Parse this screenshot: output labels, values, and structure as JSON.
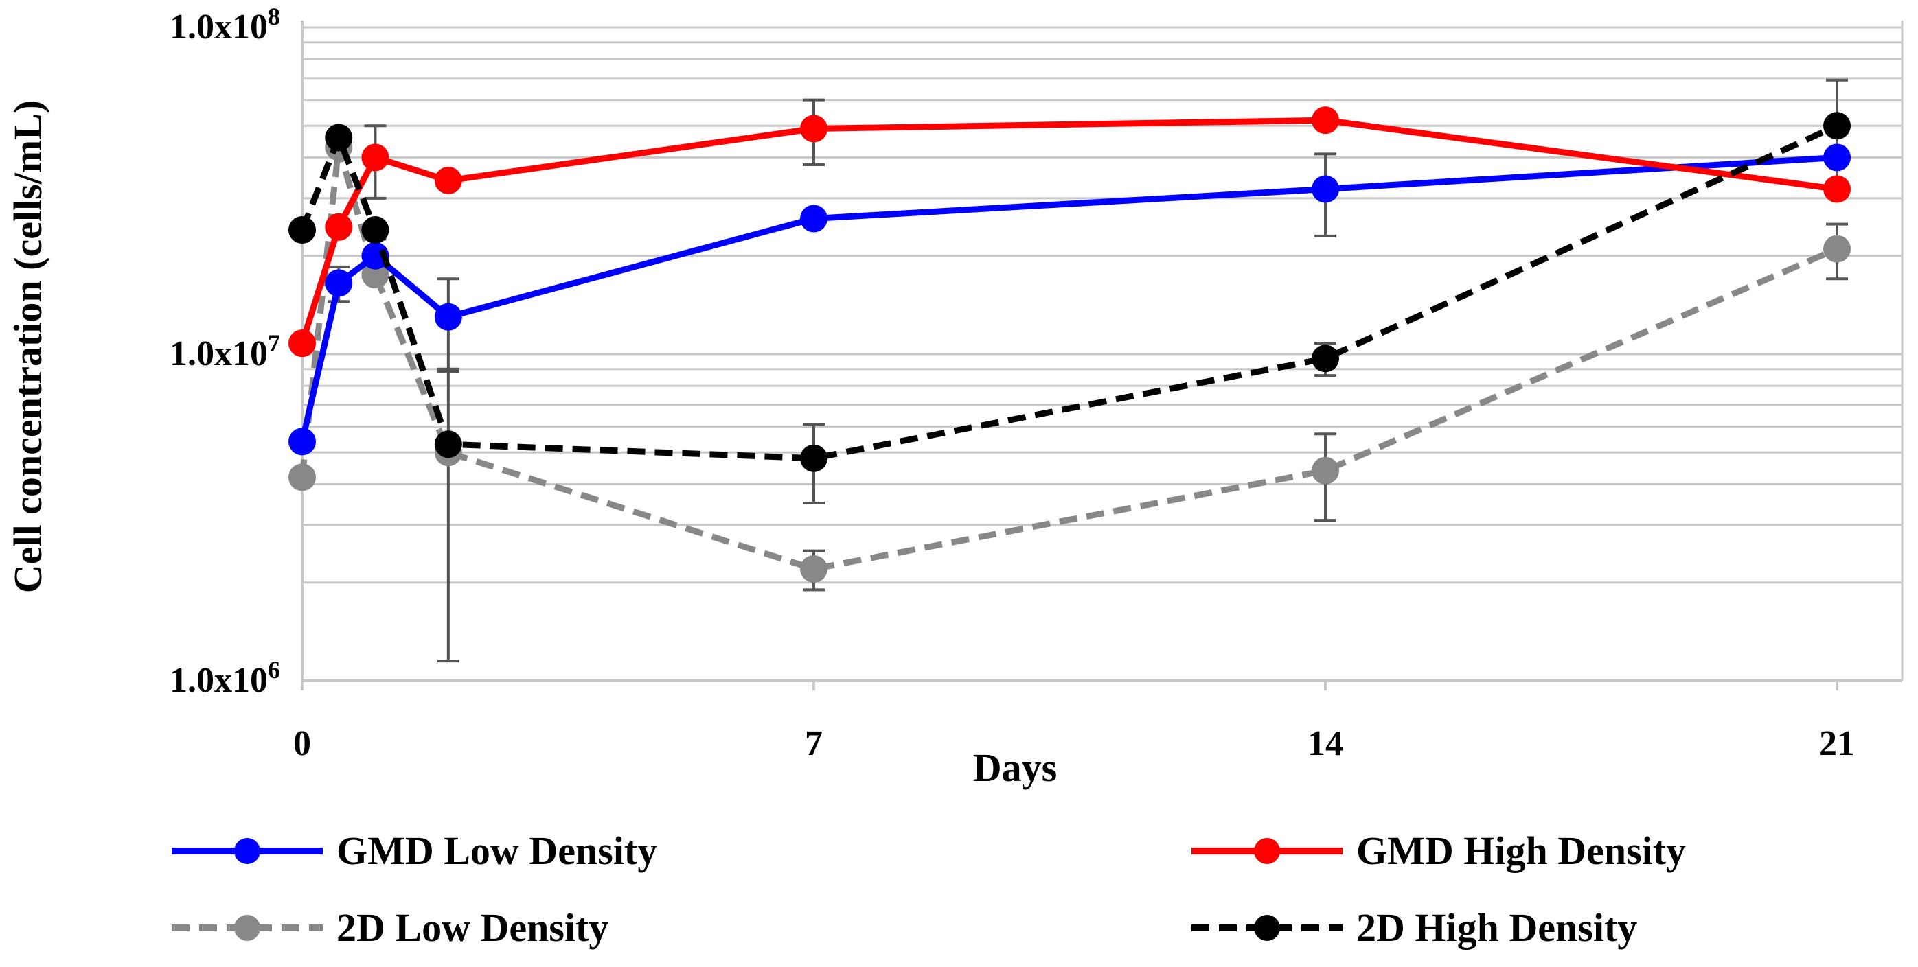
{
  "chart_data": {
    "type": "line",
    "title": "",
    "xlabel": "Days",
    "ylabel": "Cell concentration (cells/mL)",
    "yscale": "log",
    "ylim": [
      1000000,
      100000000
    ],
    "xlim": [
      0,
      22
    ],
    "x_ticks": [
      0,
      7,
      14,
      21
    ],
    "x_tick_labels": [
      "0",
      "7",
      "14",
      "21"
    ],
    "y_ticks": [
      1000000,
      10000000,
      100000000
    ],
    "y_tick_labels": [
      {
        "base": "1.0x10",
        "exp": "6"
      },
      {
        "base": "1.0x10",
        "exp": "7"
      },
      {
        "base": "1.0x10",
        "exp": "8"
      }
    ],
    "grid": "horizontal minor (log)",
    "legend_position": "bottom",
    "series": [
      {
        "name": "GMD Low Density",
        "color": "#0000ff",
        "dash": "solid",
        "x": [
          0,
          0.5,
          1,
          2,
          7,
          14,
          21
        ],
        "y": [
          5400000,
          16500000,
          20000000,
          13000000,
          26000000,
          32000000,
          40000000
        ],
        "err": [
          0,
          2000000,
          2500000,
          4000000,
          0,
          9000000,
          0
        ]
      },
      {
        "name": "GMD High Density",
        "color": "#ff0000",
        "dash": "solid",
        "x": [
          0,
          0.5,
          1,
          2,
          7,
          14,
          21
        ],
        "y": [
          10800000,
          24500000,
          40000000,
          34000000,
          49000000,
          52000000,
          32000000
        ],
        "err": [
          0,
          0,
          10000000,
          0,
          11000000,
          0,
          0
        ]
      },
      {
        "name": "2D Low Density",
        "color": "#888888",
        "dash": "dashed",
        "x": [
          0,
          0.5,
          1,
          2,
          7,
          14,
          21
        ],
        "y": [
          4200000,
          43000000,
          17500000,
          5000000,
          2200000,
          4400000,
          21000000
        ],
        "err": [
          0,
          0,
          0,
          3850000,
          300000,
          1300000,
          4000000
        ]
      },
      {
        "name": "2D High Density",
        "color": "#000000",
        "dash": "dashed",
        "x": [
          0,
          0.5,
          1,
          2,
          7,
          14,
          21
        ],
        "y": [
          24000000,
          46000000,
          24000000,
          5300000,
          4800000,
          9700000,
          50000000
        ],
        "err": [
          1000000,
          0,
          0,
          0,
          1300000,
          1100000,
          19000000
        ]
      }
    ]
  }
}
